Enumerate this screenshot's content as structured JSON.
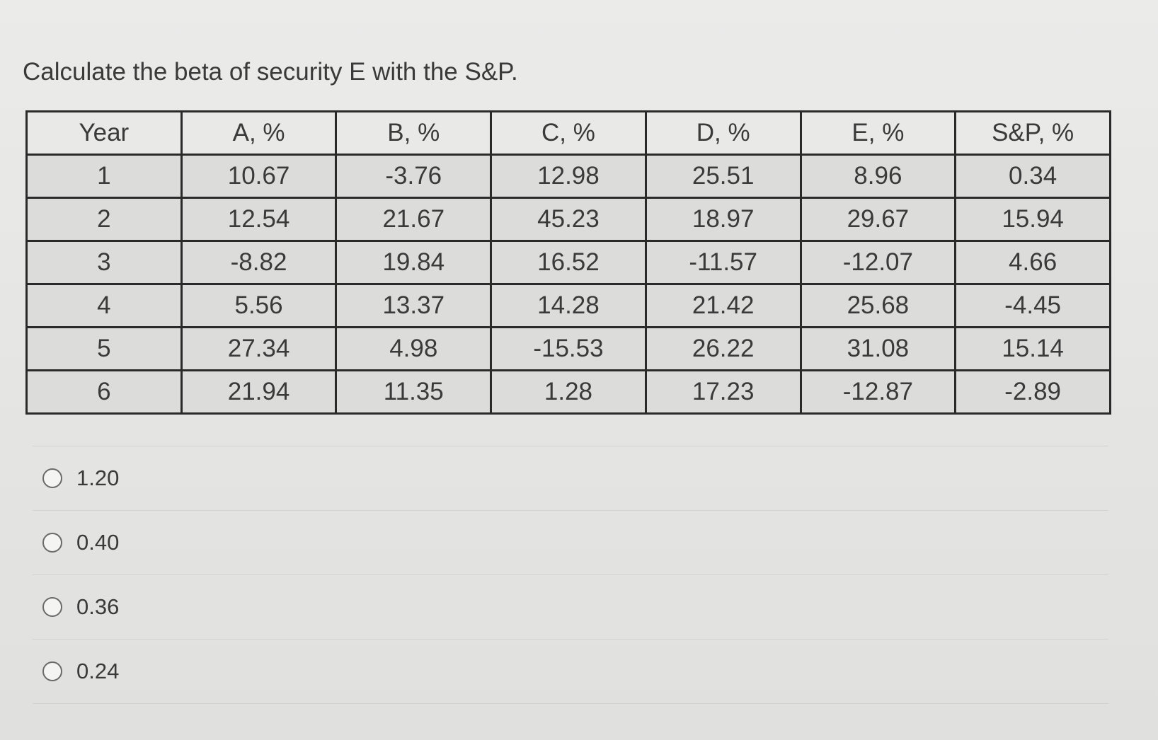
{
  "question": "Calculate the beta of security E with the S&P.",
  "table": {
    "headers": [
      "Year",
      "A, %",
      "B, %",
      "C, %",
      "D, %",
      "E, %",
      "S&P, %"
    ],
    "rows": [
      [
        "1",
        "10.67",
        "-3.76",
        "12.98",
        "25.51",
        "8.96",
        "0.34"
      ],
      [
        "2",
        "12.54",
        "21.67",
        "45.23",
        "18.97",
        "29.67",
        "15.94"
      ],
      [
        "3",
        "-8.82",
        "19.84",
        "16.52",
        "-11.57",
        "-12.07",
        "4.66"
      ],
      [
        "4",
        "5.56",
        "13.37",
        "14.28",
        "21.42",
        "25.68",
        "-4.45"
      ],
      [
        "5",
        "27.34",
        "4.98",
        "-15.53",
        "26.22",
        "31.08",
        "15.14"
      ],
      [
        "6",
        "21.94",
        "11.35",
        "1.28",
        "17.23",
        "-12.87",
        "-2.89"
      ]
    ]
  },
  "options": [
    {
      "label": "1.20"
    },
    {
      "label": "0.40"
    },
    {
      "label": "0.36"
    },
    {
      "label": "0.24"
    }
  ]
}
